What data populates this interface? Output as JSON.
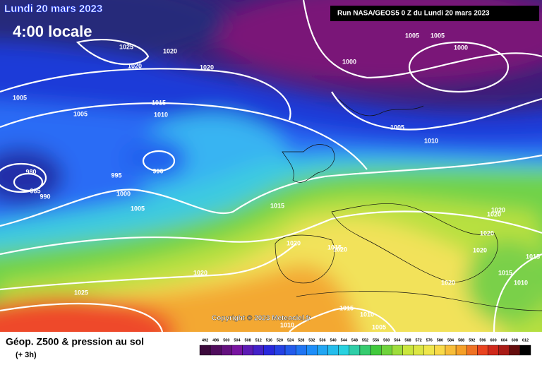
{
  "header": {
    "date": "Lundi 20 mars 2023",
    "time": "4:00 locale",
    "run": "Run NASA/GEOS5 0 Z du Lundi 20 mars 2023"
  },
  "isobar_labels": [
    1025,
    1020,
    1020,
    1020,
    1005,
    1005,
    1015,
    1010,
    980,
    985,
    990,
    990,
    995,
    1000,
    1005,
    1015,
    1020,
    1015,
    1020,
    1020,
    1025,
    1000,
    1005,
    1005,
    1000,
    1005,
    1010,
    1020,
    1020,
    1020,
    1020,
    1015,
    1015,
    1020,
    1010,
    1015,
    1010,
    1005,
    1010
  ],
  "copyright": "Copyright © 2023 Meteociel.fr",
  "footer": {
    "title": "Géop. Z500 & pression au sol",
    "lead": "(+ 3h)"
  },
  "colorbar": {
    "labels": [
      492,
      496,
      500,
      504,
      508,
      512,
      516,
      520,
      524,
      528,
      532,
      536,
      540,
      544,
      548,
      552,
      556,
      560,
      564,
      568,
      572,
      576,
      580,
      584,
      588,
      592,
      596,
      600,
      604,
      608,
      612
    ]
  }
}
